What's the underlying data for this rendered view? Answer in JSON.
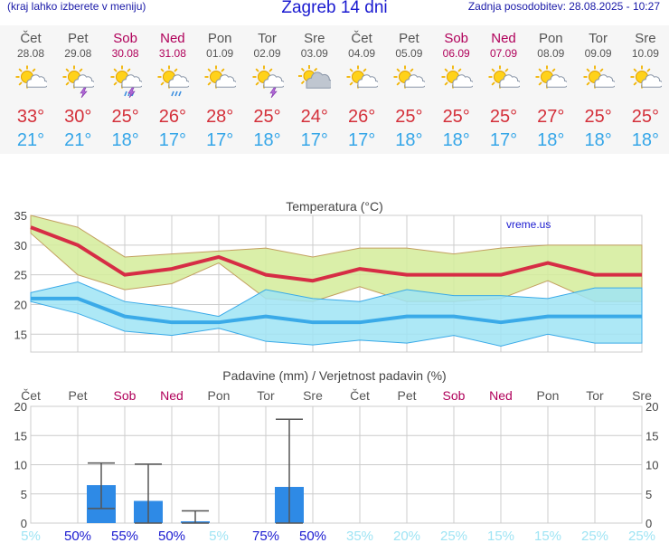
{
  "header": {
    "menu_hint": "(kraj lahko izberete v meniju)",
    "title": "Zagreb 14 dni",
    "updated": "Zadnja posodobitev: 28.08.2025 - 10:27"
  },
  "days": [
    {
      "name": "Čet",
      "date": "28.08",
      "weekend": false,
      "icon": "sun-cloud-icon",
      "max": "33°",
      "min": "21°"
    },
    {
      "name": "Pet",
      "date": "29.08",
      "weekend": false,
      "icon": "sun-cloud-thunder-icon",
      "max": "30°",
      "min": "21°"
    },
    {
      "name": "Sob",
      "date": "30.08",
      "weekend": true,
      "icon": "sun-cloud-rain-thunder-icon",
      "max": "25°",
      "min": "18°"
    },
    {
      "name": "Ned",
      "date": "31.08",
      "weekend": true,
      "icon": "sun-cloud-rain-icon",
      "max": "26°",
      "min": "17°"
    },
    {
      "name": "Pon",
      "date": "01.09",
      "weekend": false,
      "icon": "sun-cloud-icon",
      "max": "28°",
      "min": "17°"
    },
    {
      "name": "Tor",
      "date": "02.09",
      "weekend": false,
      "icon": "sun-cloud-thunder-icon",
      "max": "25°",
      "min": "18°"
    },
    {
      "name": "Sre",
      "date": "03.09",
      "weekend": false,
      "icon": "cloud-sun-icon",
      "max": "24°",
      "min": "17°"
    },
    {
      "name": "Čet",
      "date": "04.09",
      "weekend": false,
      "icon": "sun-cloud-icon",
      "max": "26°",
      "min": "17°"
    },
    {
      "name": "Pet",
      "date": "05.09",
      "weekend": false,
      "icon": "sun-cloud-icon",
      "max": "25°",
      "min": "18°"
    },
    {
      "name": "Sob",
      "date": "06.09",
      "weekend": true,
      "icon": "sun-cloud-icon",
      "max": "25°",
      "min": "18°"
    },
    {
      "name": "Ned",
      "date": "07.09",
      "weekend": true,
      "icon": "sun-cloud-icon",
      "max": "25°",
      "min": "17°"
    },
    {
      "name": "Pon",
      "date": "08.09",
      "weekend": false,
      "icon": "sun-cloud-icon",
      "max": "27°",
      "min": "18°"
    },
    {
      "name": "Tor",
      "date": "09.09",
      "weekend": false,
      "icon": "sun-cloud-icon",
      "max": "25°",
      "min": "18°"
    },
    {
      "name": "Sre",
      "date": "10.09",
      "weekend": false,
      "icon": "sun-cloud-icon",
      "max": "25°",
      "min": "18°"
    }
  ],
  "colors": {
    "max_line": "#d62d45",
    "max_band": "#d4ec9a",
    "min_line": "#3aaae8",
    "min_band": "#9fe4f4",
    "overlap": "#8cdc98",
    "bar": "#2e8ae6",
    "grid": "#cccccc",
    "weekend": "#b0005a",
    "prob_high": "#1a1ad0",
    "prob_low": "#9fe4f4"
  },
  "chart_data": [
    {
      "type": "line",
      "title": "Temperatura (°C)",
      "watermark": "vreme.us",
      "ylim": [
        12,
        35
      ],
      "yticks": [
        "15",
        "20",
        "25",
        "30",
        "35"
      ],
      "x": [
        "Čet",
        "Pet",
        "Sob",
        "Ned",
        "Pon",
        "Tor",
        "Sre",
        "Čet",
        "Pet",
        "Sob",
        "Ned",
        "Pon",
        "Tor",
        "Sre"
      ],
      "series": [
        {
          "values": [
            33,
            30,
            25,
            26,
            28,
            25,
            24,
            26,
            25,
            25,
            25,
            27,
            25,
            25
          ],
          "range_high": [
            35,
            33,
            28,
            28.5,
            29,
            29.5,
            28,
            29.5,
            29.5,
            28.5,
            29.5,
            30,
            30,
            30
          ],
          "range_low": [
            32,
            25,
            22.5,
            23.5,
            27,
            21,
            20.5,
            23,
            20.5,
            20.5,
            21,
            24,
            20.5,
            20.5
          ]
        },
        {
          "values": [
            21,
            21,
            18,
            17,
            17,
            18,
            17,
            17,
            18,
            18,
            17,
            18,
            18,
            18
          ],
          "range_high": [
            22,
            23.8,
            20.5,
            19.5,
            18,
            22.5,
            21,
            20.5,
            22.5,
            21.5,
            21.5,
            21,
            22.8,
            22.8
          ],
          "range_low": [
            20.5,
            18.5,
            15.5,
            14.8,
            16,
            13.8,
            13.2,
            14,
            13.5,
            14.8,
            13,
            15,
            13.5,
            13.5
          ]
        }
      ],
      "grid": true
    },
    {
      "type": "bar",
      "title": "Padavine (mm) / Verjetnost padavin (%)",
      "ylim": [
        0,
        20
      ],
      "yticks": [
        "0",
        "5",
        "10",
        "15",
        "20"
      ],
      "categories": [
        "Čet",
        "Pet",
        "Sob",
        "Ned",
        "Pon",
        "Tor",
        "Sre",
        "Čet",
        "Pet",
        "Sob",
        "Ned",
        "Pon",
        "Tor",
        "Sre"
      ],
      "values": [
        0,
        6.5,
        3.8,
        0.3,
        0,
        6.2,
        0,
        0,
        0,
        0,
        0,
        0,
        0,
        0
      ],
      "error_high": [
        0,
        10.3,
        10.1,
        2.1,
        0,
        17.8,
        0,
        0,
        0,
        0,
        0,
        0,
        0,
        0
      ],
      "error_low": [
        0,
        2.5,
        0,
        0,
        0,
        0,
        0,
        0,
        0,
        0,
        0,
        0,
        0,
        0
      ],
      "probabilities": [
        "5%",
        "50%",
        "55%",
        "50%",
        "5%",
        "75%",
        "50%",
        "35%",
        "20%",
        "25%",
        "15%",
        "15%",
        "25%",
        "25%"
      ],
      "grid": true
    }
  ]
}
